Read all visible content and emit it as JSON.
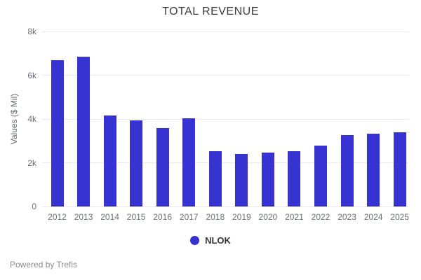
{
  "title": "TOTAL REVENUE",
  "footer": "Powered by Trefis",
  "legend": {
    "label": "NLOK",
    "marker_color": "#3732d2"
  },
  "colors": {
    "bar": "#3732d2",
    "title_text": "#3d3d3d",
    "axis_text": "#6b6f78",
    "gridline": "#e9e9ee",
    "footer_text": "#8b8b8b",
    "background": "#ffffff"
  },
  "chart_data": {
    "type": "bar",
    "title": "TOTAL REVENUE",
    "xlabel": "",
    "ylabel": "Values ($ Mil)",
    "categories": [
      "2012",
      "2013",
      "2014",
      "2015",
      "2016",
      "2017",
      "2018",
      "2019",
      "2020",
      "2021",
      "2022",
      "2023",
      "2024",
      "2025"
    ],
    "series": [
      {
        "name": "NLOK",
        "values": [
          6700,
          6860,
          4170,
          3950,
          3600,
          4020,
          2530,
          2400,
          2460,
          2520,
          2780,
          3270,
          3330,
          3380
        ]
      }
    ],
    "ylim": [
      0,
      8000
    ],
    "yticks": [
      {
        "value": 0,
        "label": "0"
      },
      {
        "value": 2000,
        "label": "2k"
      },
      {
        "value": 4000,
        "label": "4k"
      },
      {
        "value": 6000,
        "label": "6k"
      },
      {
        "value": 8000,
        "label": "8k"
      }
    ],
    "grid": true,
    "legend_position": "bottom"
  }
}
